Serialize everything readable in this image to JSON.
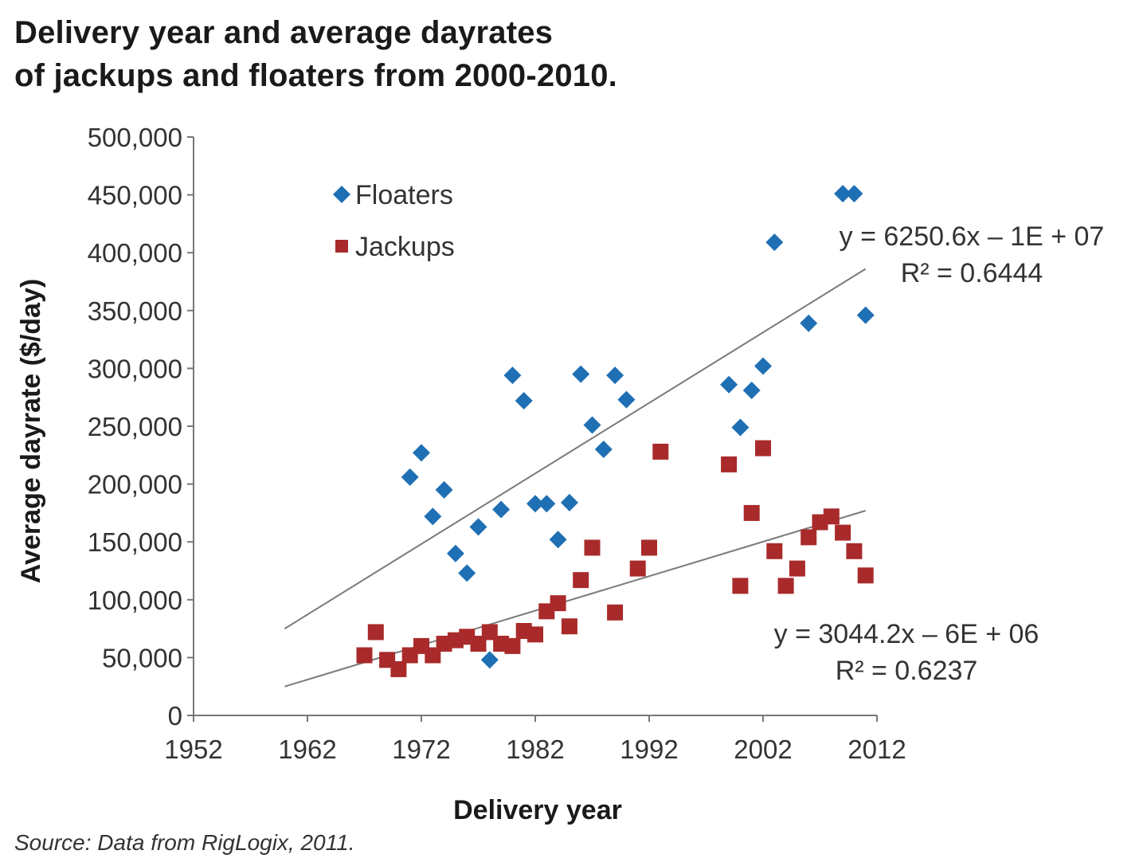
{
  "title_lines": [
    "Delivery year and average dayrates",
    "of jackups and floaters from 2000-2010."
  ],
  "source": "Source: Data from RigLogix, 2011.",
  "chart_data": {
    "type": "scatter",
    "xlabel": "Delivery year",
    "ylabel": "Average dayrate ($/day)",
    "xlim": [
      1952,
      2012
    ],
    "ylim": [
      0,
      500000
    ],
    "x_ticks": [
      1952,
      1962,
      1972,
      1982,
      1992,
      2002,
      2012
    ],
    "y_ticks": [
      0,
      50000,
      100000,
      150000,
      200000,
      250000,
      300000,
      350000,
      400000,
      450000,
      500000
    ],
    "y_tick_labels": [
      "0",
      "50,000",
      "100,000",
      "150,000",
      "200,000",
      "250,000",
      "300,000",
      "350,000",
      "400,000",
      "450,000",
      "500,000"
    ],
    "x_tick_labels": [
      "1952",
      "1962",
      "1972",
      "1982",
      "1992",
      "2002",
      "2012"
    ],
    "legend_position": "top-left",
    "grid": false,
    "series": [
      {
        "name": "Floaters",
        "marker": "diamond",
        "color": "#1f6fb4",
        "points": [
          [
            1971,
            206000
          ],
          [
            1972,
            227000
          ],
          [
            1973,
            172000
          ],
          [
            1974,
            195000
          ],
          [
            1975,
            140000
          ],
          [
            1976,
            123000
          ],
          [
            1977,
            163000
          ],
          [
            1978,
            48000
          ],
          [
            1979,
            178000
          ],
          [
            1980,
            294000
          ],
          [
            1981,
            272000
          ],
          [
            1982,
            183000
          ],
          [
            1983,
            183000
          ],
          [
            1984,
            152000
          ],
          [
            1985,
            184000
          ],
          [
            1986,
            295000
          ],
          [
            1987,
            251000
          ],
          [
            1988,
            230000
          ],
          [
            1989,
            294000
          ],
          [
            1990,
            273000
          ],
          [
            1999,
            286000
          ],
          [
            2000,
            249000
          ],
          [
            2001,
            281000
          ],
          [
            2002,
            302000
          ],
          [
            2003,
            409000
          ],
          [
            2006,
            339000
          ],
          [
            2009,
            451000
          ],
          [
            2010,
            451000
          ],
          [
            2011,
            346000
          ]
        ],
        "trendline": {
          "x": [
            1960,
            2011
          ],
          "y": [
            75000,
            386000
          ],
          "equation": "y = 6250.6x – 1E + 07",
          "r2": "R² = 0.6444"
        }
      },
      {
        "name": "Jackups",
        "marker": "square",
        "color": "#a92a2a",
        "points": [
          [
            1967,
            52000
          ],
          [
            1968,
            72000
          ],
          [
            1969,
            48000
          ],
          [
            1970,
            40000
          ],
          [
            1971,
            52000
          ],
          [
            1972,
            60000
          ],
          [
            1973,
            52000
          ],
          [
            1974,
            62000
          ],
          [
            1975,
            65000
          ],
          [
            1976,
            68000
          ],
          [
            1977,
            62000
          ],
          [
            1978,
            72000
          ],
          [
            1979,
            62000
          ],
          [
            1980,
            60000
          ],
          [
            1981,
            73000
          ],
          [
            1982,
            70000
          ],
          [
            1983,
            90000
          ],
          [
            1984,
            97000
          ],
          [
            1985,
            77000
          ],
          [
            1986,
            117000
          ],
          [
            1987,
            145000
          ],
          [
            1989,
            89000
          ],
          [
            1991,
            127000
          ],
          [
            1992,
            145000
          ],
          [
            1993,
            228000
          ],
          [
            1999,
            217000
          ],
          [
            2000,
            112000
          ],
          [
            2001,
            175000
          ],
          [
            2002,
            231000
          ],
          [
            2003,
            142000
          ],
          [
            2004,
            112000
          ],
          [
            2005,
            127000
          ],
          [
            2006,
            154000
          ],
          [
            2007,
            167000
          ],
          [
            2008,
            172000
          ],
          [
            2009,
            158000
          ],
          [
            2010,
            142000
          ],
          [
            2011,
            121000
          ]
        ],
        "trendline": {
          "x": [
            1960,
            2011
          ],
          "y": [
            25000,
            177000
          ],
          "equation": "y = 3044.2x – 6E + 06",
          "r2": "R² = 0.6237"
        }
      }
    ]
  }
}
